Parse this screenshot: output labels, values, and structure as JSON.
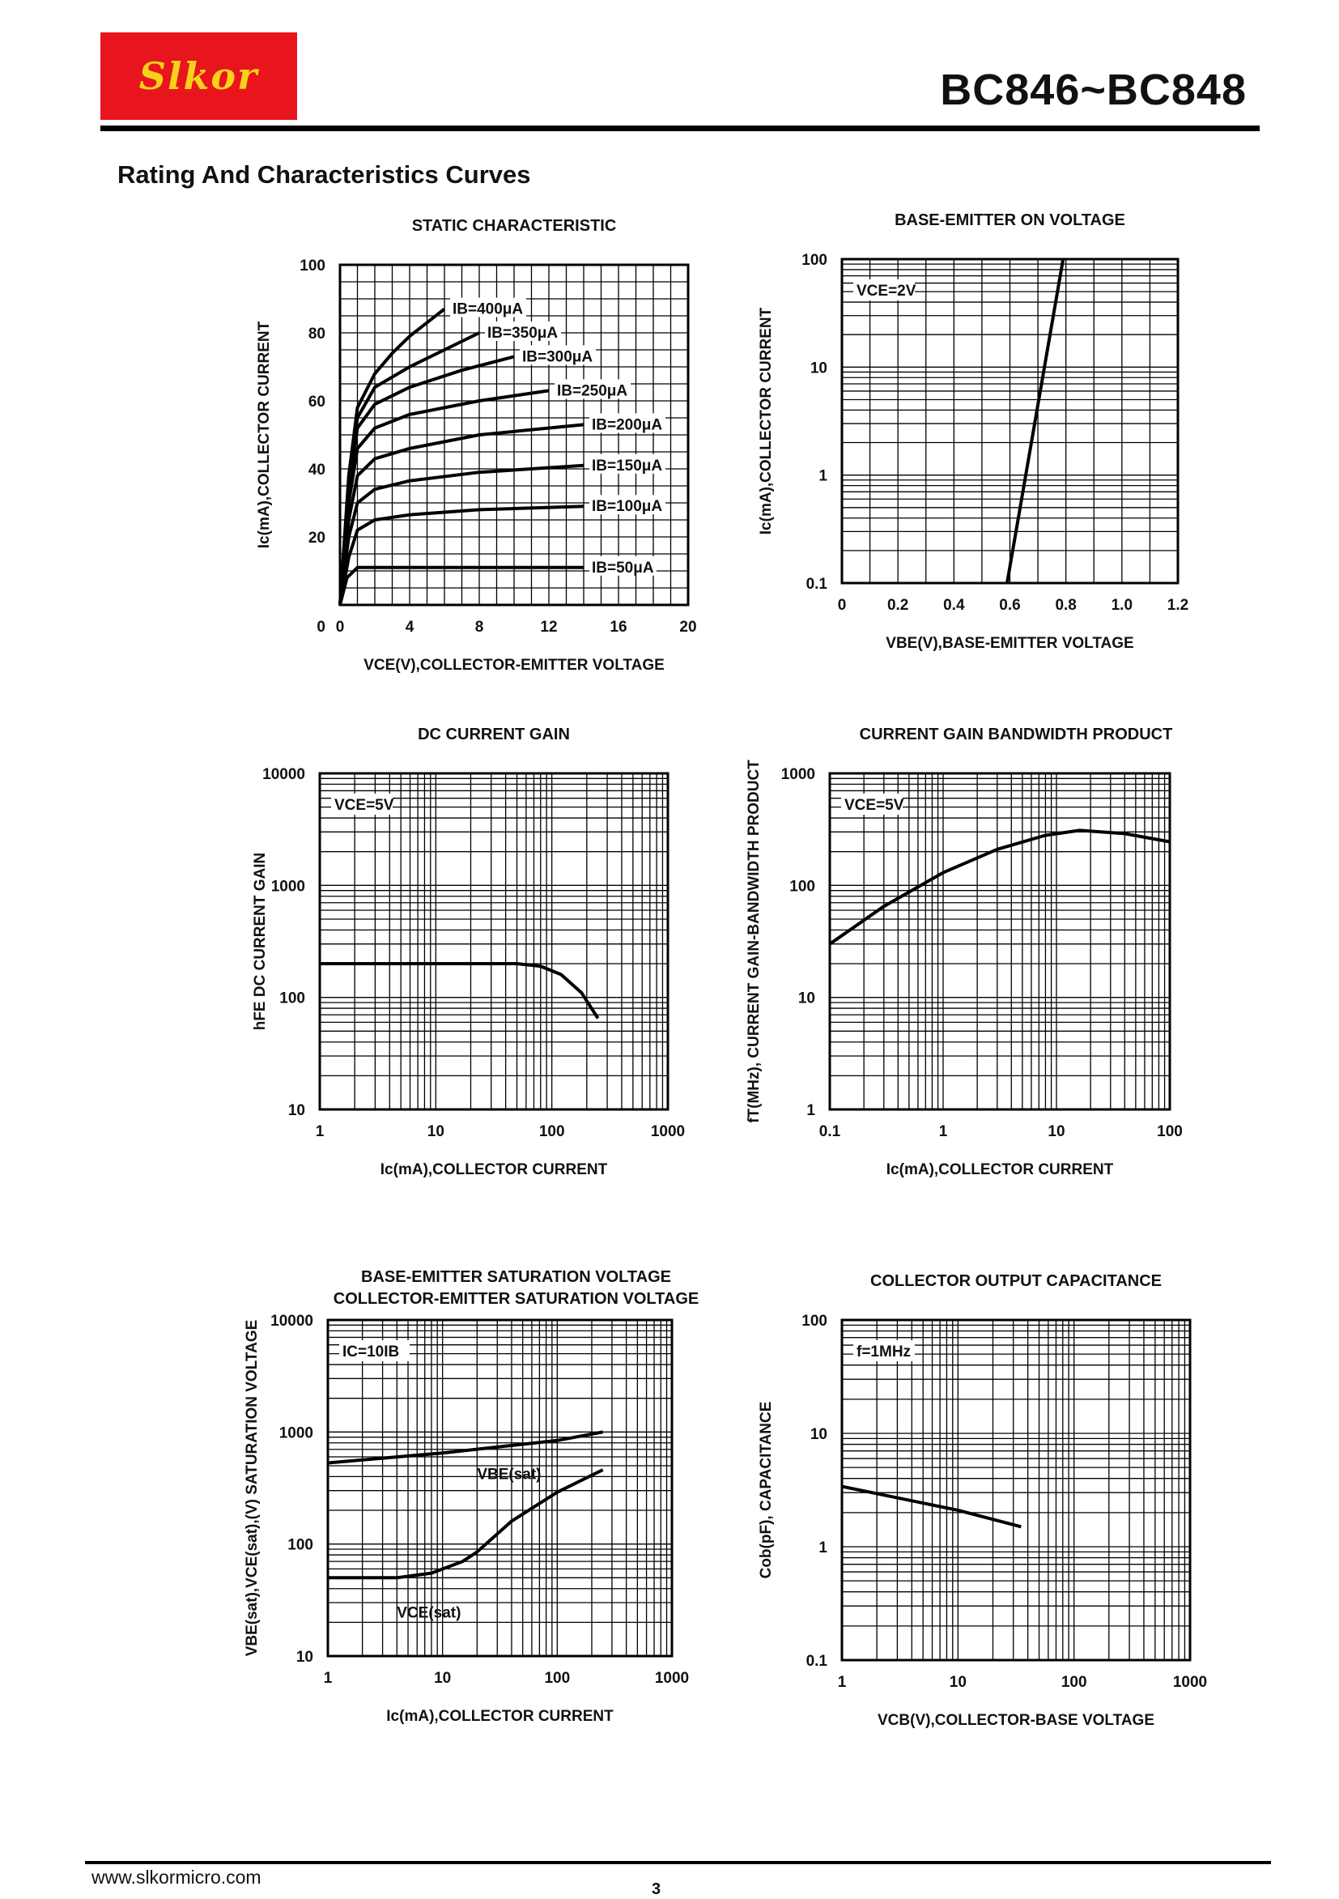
{
  "header": {
    "logo": "Slkor",
    "part": "BC846~BC848"
  },
  "section_title": "Rating And Characteristics Curves",
  "footer": {
    "url": "www.slkormicro.com",
    "page": "3"
  },
  "chart_data": [
    {
      "id": "static",
      "type": "line",
      "title": "STATIC CHARACTERISTIC",
      "xlabel": "VCE(V),COLLECTOR-EMITTER VOLTAGE",
      "ylabel": "Ic(mA),COLLECTOR CURRENT",
      "xlim": [
        0,
        20
      ],
      "ylim": [
        0,
        100
      ],
      "xscale": "linear",
      "yscale": "linear",
      "xticks": [
        "0",
        "4",
        "8",
        "12",
        "16",
        "20"
      ],
      "yticks": [
        "20",
        "40",
        "60",
        "80",
        "100"
      ],
      "grid": true,
      "series": [
        {
          "name": "IB=50μA",
          "x": [
            0,
            0.4,
            1,
            2,
            14
          ],
          "y": [
            0,
            8,
            11,
            11,
            11
          ]
        },
        {
          "name": "IB=100μA",
          "x": [
            0,
            0.5,
            1,
            2,
            4,
            8,
            14
          ],
          "y": [
            0,
            14,
            22,
            25,
            26.5,
            28,
            29
          ]
        },
        {
          "name": "IB=150μA",
          "x": [
            0,
            0.5,
            1,
            2,
            4,
            8,
            14
          ],
          "y": [
            0,
            20,
            30,
            34,
            36.5,
            39,
            41
          ]
        },
        {
          "name": "IB=200μA",
          "x": [
            0,
            0.5,
            1,
            2,
            4,
            8,
            14
          ],
          "y": [
            0,
            25,
            38,
            43,
            46,
            50,
            53
          ]
        },
        {
          "name": "IB=250μA",
          "x": [
            0,
            0.5,
            1,
            2,
            4,
            8,
            12
          ],
          "y": [
            0,
            30,
            46,
            52,
            56,
            60,
            63
          ]
        },
        {
          "name": "IB=300μA",
          "x": [
            0,
            0.5,
            1,
            2,
            4,
            7,
            10
          ],
          "y": [
            0,
            33,
            52,
            59,
            64,
            69,
            73
          ]
        },
        {
          "name": "IB=350μA",
          "x": [
            0,
            0.5,
            1,
            2,
            4,
            6,
            8
          ],
          "y": [
            0,
            36,
            55,
            64,
            70,
            75,
            80
          ]
        },
        {
          "name": "IB=400μA",
          "x": [
            0,
            0.5,
            1,
            2,
            3,
            4,
            6
          ],
          "y": [
            0,
            38,
            58,
            68,
            74,
            79,
            87
          ]
        }
      ]
    },
    {
      "id": "vbe_on",
      "type": "line",
      "title": "BASE-EMITTER ON VOLTAGE",
      "xlabel": "VBE(V),BASE-EMITTER VOLTAGE",
      "ylabel": "Ic(mA),COLLECTOR CURRENT",
      "xlim": [
        0,
        1.2
      ],
      "ylim": [
        0.1,
        100
      ],
      "xscale": "linear",
      "yscale": "log",
      "xticks": [
        "0",
        "0.2",
        "0.4",
        "0.6",
        "0.8",
        "1.0",
        "1.2"
      ],
      "yticks": [
        "0.1",
        "1",
        "10",
        "100"
      ],
      "annotation": "VCE=2V",
      "grid": true,
      "series": [
        {
          "name": "",
          "x": [
            0.59,
            0.79
          ],
          "y": [
            0.1,
            100
          ]
        }
      ]
    },
    {
      "id": "hfe",
      "type": "line",
      "title": "DC CURRENT GAIN",
      "xlabel": "Ic(mA),COLLECTOR CURRENT",
      "ylabel": "hFE DC CURRENT GAIN",
      "xlim": [
        1,
        1000
      ],
      "ylim": [
        10,
        10000
      ],
      "xscale": "log",
      "yscale": "log",
      "xticks": [
        "1",
        "10",
        "100",
        "1000"
      ],
      "yticks": [
        "10",
        "100",
        "1000",
        "10000"
      ],
      "annotation": "VCE=5V",
      "grid": true,
      "series": [
        {
          "name": "",
          "x": [
            1,
            10,
            50,
            80,
            120,
            180,
            250
          ],
          "y": [
            200,
            200,
            200,
            190,
            160,
            110,
            65
          ]
        }
      ]
    },
    {
      "id": "ft",
      "type": "line",
      "title": "CURRENT GAIN BANDWIDTH PRODUCT",
      "xlabel": "Ic(mA),COLLECTOR CURRENT",
      "ylabel": "fT(MHz), CURRENT GAIN-BANDWIDTH PRODUCT",
      "xlim": [
        0.1,
        100
      ],
      "ylim": [
        1,
        1000
      ],
      "xscale": "log",
      "yscale": "log",
      "xticks": [
        "0.1",
        "1",
        "10",
        "100"
      ],
      "yticks": [
        "1",
        "10",
        "100",
        "1000"
      ],
      "annotation": "VCE=5V",
      "grid": true,
      "series": [
        {
          "name": "",
          "x": [
            0.1,
            0.3,
            1,
            3,
            8,
            16,
            40,
            100
          ],
          "y": [
            30,
            65,
            130,
            210,
            280,
            310,
            290,
            245
          ]
        }
      ]
    },
    {
      "id": "sat",
      "type": "line",
      "title": "BASE-EMITTER SATURATION VOLTAGE",
      "subtitle": "COLLECTOR-EMITTER SATURATION VOLTAGE",
      "xlabel": "Ic(mA),COLLECTOR CURRENT",
      "ylabel": "VBE(sat),VCE(sat),(V) SATURATION VOLTAGE",
      "xlim": [
        1,
        1000
      ],
      "ylim": [
        10,
        10000
      ],
      "xscale": "log",
      "yscale": "log",
      "xticks": [
        "1",
        "10",
        "100",
        "1000"
      ],
      "yticks": [
        "10",
        "100",
        "1000",
        "10000"
      ],
      "annotation": "IC=10IB",
      "grid": true,
      "series": [
        {
          "name": "VBE(sat)",
          "x": [
            1,
            10,
            100,
            250
          ],
          "y": [
            530,
            650,
            840,
            1000
          ]
        },
        {
          "name": "VCE(sat)",
          "x": [
            1,
            4,
            8,
            15,
            20,
            40,
            100,
            250
          ],
          "y": [
            50,
            50,
            55,
            70,
            85,
            160,
            290,
            460
          ]
        }
      ]
    },
    {
      "id": "cob",
      "type": "line",
      "title": "COLLECTOR OUTPUT CAPACITANCE",
      "xlabel": "VCB(V),COLLECTOR-BASE VOLTAGE",
      "ylabel": "Cob(pF), CAPACITANCE",
      "xlim": [
        1,
        1000
      ],
      "ylim": [
        0.1,
        100
      ],
      "xscale": "log",
      "yscale": "log",
      "xticks": [
        "1",
        "10",
        "100",
        "1000"
      ],
      "yticks": [
        "0.1",
        "1",
        "10",
        "100"
      ],
      "annotation": "f=1MHz",
      "grid": true,
      "series": [
        {
          "name": "",
          "x": [
            1,
            10,
            35
          ],
          "y": [
            3.4,
            2.1,
            1.5
          ]
        }
      ]
    }
  ]
}
